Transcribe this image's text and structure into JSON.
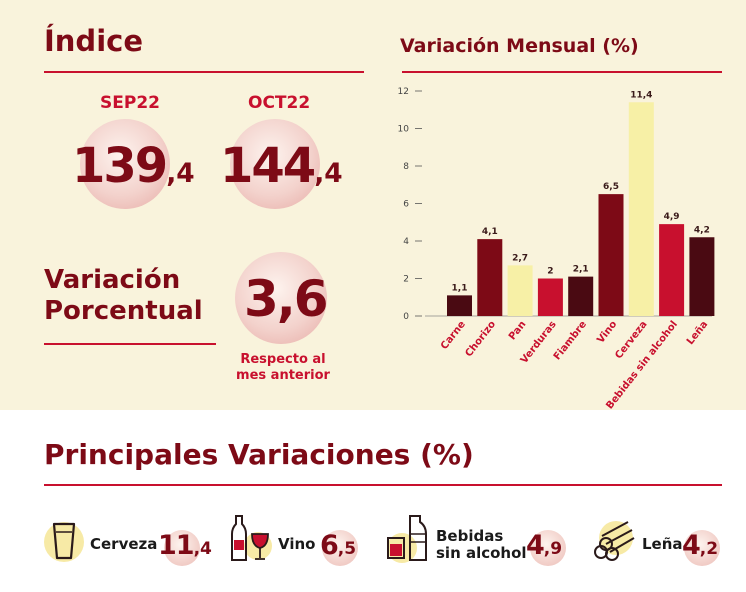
{
  "indice": {
    "title": "Índice",
    "sep": {
      "label": "SEP22",
      "int": "139",
      "dec": ",4"
    },
    "oct": {
      "label": "OCT22",
      "int": "144",
      "dec": ",4"
    }
  },
  "variacion": {
    "title_line1": "Variación",
    "title_line2": "Porcentual",
    "int": "3",
    "dec": ",6",
    "note_line1": "Respecto al",
    "note_line2": "mes anterior"
  },
  "chart_data": {
    "type": "bar",
    "title": "Variación Mensual (%)",
    "categories": [
      "Carne",
      "Chorizo",
      "Pan",
      "Verduras",
      "Fiambre",
      "Vino",
      "Cerveza",
      "Bebidas sin alcohol",
      "Leña"
    ],
    "values": [
      1.1,
      4.1,
      2.7,
      2,
      2.1,
      6.5,
      11.4,
      4.9,
      4.2
    ],
    "value_labels": [
      "1,1",
      "4,1",
      "2,7",
      "2",
      "2,1",
      "6,5",
      "11,4",
      "4,9",
      "4,2"
    ],
    "bar_colors": [
      "#4a0a12",
      "#7d0a16",
      "#f7f0a6",
      "#c8102e",
      "#4a0a12",
      "#7d0a16",
      "#f7f0a6",
      "#c8102e",
      "#4a0a12"
    ],
    "ylim": [
      0,
      12
    ],
    "yticks": [
      0,
      2,
      4,
      6,
      8,
      10,
      12
    ],
    "grid": false
  },
  "principales": {
    "title": "Principales Variaciones (%)",
    "items": [
      {
        "label_line1": "Cerveza",
        "label_line2": "",
        "int": "11",
        "dec": ",4",
        "icon": "beer-glass-icon"
      },
      {
        "label_line1": "Vino",
        "label_line2": "",
        "int": "6",
        "dec": ",5",
        "icon": "wine-icon"
      },
      {
        "label_line1": "Bebidas",
        "label_line2": "sin alcohol",
        "int": "4",
        "dec": ",9",
        "icon": "soft-drink-icon"
      },
      {
        "label_line1": "Leña",
        "label_line2": "",
        "int": "4",
        "dec": ",2",
        "icon": "firewood-icon"
      }
    ]
  },
  "colors": {
    "dark_red": "#7d0a16",
    "red": "#c8102e",
    "very_dark_red": "#4a0a12",
    "pale_yellow": "#f7f0a6",
    "cream_bg": "#f9f3dc"
  }
}
